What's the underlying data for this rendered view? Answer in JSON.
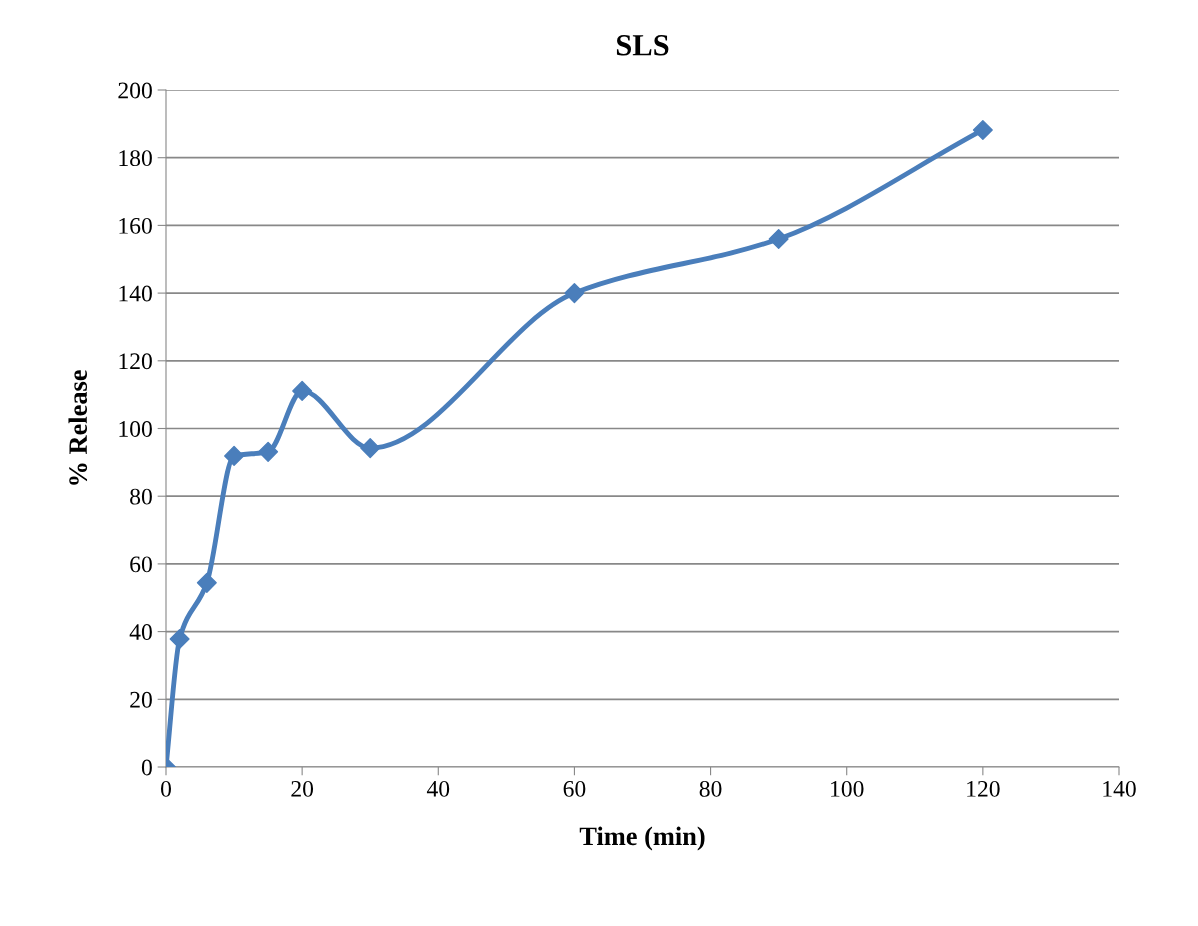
{
  "chart_data": {
    "type": "line",
    "title": "SLS",
    "xlabel": "Time (min)",
    "ylabel": "% Release",
    "x": [
      0,
      2,
      6,
      10,
      15,
      20,
      30,
      60,
      90,
      120
    ],
    "series": [
      {
        "color": "#4a7ebb",
        "values": [
          0,
          37.8,
          54.4,
          91.9,
          93.1,
          111.1,
          94.2,
          140,
          156,
          188.2
        ]
      }
    ],
    "xlim": [
      0,
      140
    ],
    "xticks": [
      0,
      20,
      40,
      60,
      80,
      100,
      120,
      140
    ],
    "ylim": [
      0,
      200
    ],
    "yticks": [
      0,
      20,
      40,
      60,
      80,
      100,
      120,
      140,
      160,
      180,
      200
    ],
    "grid": "y",
    "marker": "diamond",
    "line_style": "solid",
    "legend": false
  }
}
